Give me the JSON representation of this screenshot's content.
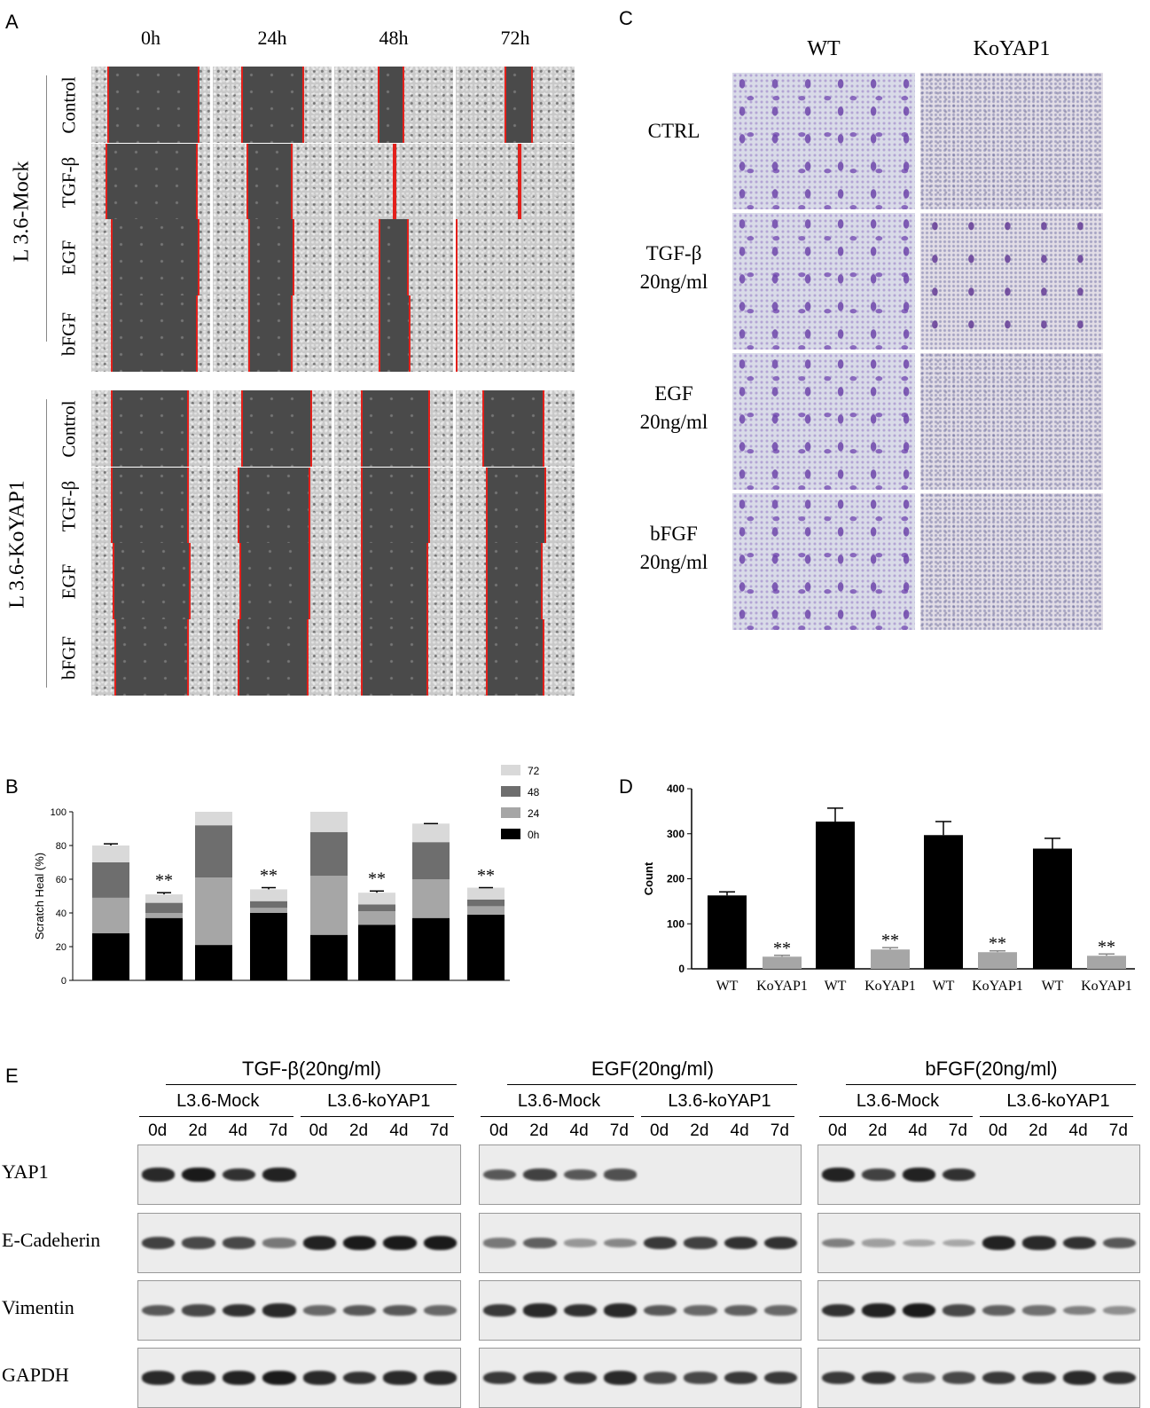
{
  "panels": {
    "a": "A",
    "b": "B",
    "c": "C",
    "d": "D",
    "e": "E"
  },
  "panel_a": {
    "timepoints": [
      "0h",
      "24h",
      "48h",
      "72h"
    ],
    "groups": [
      {
        "name": "L 3.6-Mock",
        "rows": [
          "Control",
          "TGF-β",
          "EGF",
          "bFGF"
        ]
      },
      {
        "name": "L 3.6-KoYAP1",
        "rows": [
          "Control",
          "TGF-β",
          "EGF",
          "bFGF"
        ]
      }
    ]
  },
  "panel_c": {
    "columns": [
      "WT",
      "KoYAP1"
    ],
    "rows": [
      {
        "line1": "CTRL",
        "line2": ""
      },
      {
        "line1": "TGF-β",
        "line2": "20ng/ml"
      },
      {
        "line1": "EGF",
        "line2": "20ng/ml"
      },
      {
        "line1": "bFGF",
        "line2": "20ng/ml"
      }
    ]
  },
  "chart_data": [
    {
      "type": "bar",
      "stacked": true,
      "ylabel": "Scratch Heal (%)",
      "ylim": [
        0,
        100
      ],
      "yticks": [
        0,
        20,
        40,
        60,
        80,
        100
      ],
      "categories": [
        "WT",
        "KoYAP1",
        "WT",
        "KoYAP1",
        "WT",
        "KoYAP1",
        "WT",
        "KoYAP1"
      ],
      "legend_position": "top-right",
      "series": [
        {
          "name": "0h",
          "color": "#000000",
          "values": [
            28,
            37,
            21,
            40,
            27,
            33,
            37,
            39
          ]
        },
        {
          "name": "24",
          "color": "#a6a6a6",
          "values": [
            21,
            3,
            40,
            3,
            35,
            8,
            23,
            5
          ]
        },
        {
          "name": "48",
          "color": "#6e6e6e",
          "values": [
            21,
            6,
            31,
            4,
            26,
            4,
            22,
            4
          ]
        },
        {
          "name": "72",
          "color": "#d9d9d9",
          "values": [
            10,
            5,
            8,
            7,
            12,
            7,
            11,
            7
          ]
        }
      ],
      "error_tops": [
        81,
        52,
        null,
        55,
        null,
        53,
        93,
        55
      ],
      "annotations": [
        "**",
        "**",
        "**",
        "**"
      ]
    },
    {
      "type": "bar",
      "ylabel": "Count",
      "ylim": [
        0,
        400
      ],
      "yticks": [
        0,
        100,
        200,
        300,
        400
      ],
      "categories": [
        "WT",
        "KoYAP1",
        "WT",
        "KoYAP1",
        "WT",
        "KoYAP1",
        "WT",
        "KoYAP1"
      ],
      "series": [
        {
          "values": [
            163,
            27,
            327,
            43,
            297,
            37,
            267,
            29
          ]
        }
      ],
      "errors": [
        8,
        3,
        30,
        4,
        30,
        3,
        23,
        4
      ],
      "colors": [
        "#000000",
        "#a6a6a6",
        "#000000",
        "#a6a6a6",
        "#000000",
        "#a6a6a6",
        "#000000",
        "#a6a6a6"
      ],
      "annotations": [
        "**",
        "**",
        "**",
        "**"
      ]
    }
  ],
  "panel_e": {
    "treatments": [
      "TGF-β(20ng/ml)",
      "EGF(20ng/ml)",
      "bFGF(20ng/ml)"
    ],
    "lines": [
      "L3.6-Mock",
      "L3.6-koYAP1"
    ],
    "days": [
      "0d",
      "2d",
      "4d",
      "7d"
    ],
    "proteins": [
      "YAP1",
      "E-Cadeherin",
      "Vimentin",
      "GAPDH"
    ]
  }
}
